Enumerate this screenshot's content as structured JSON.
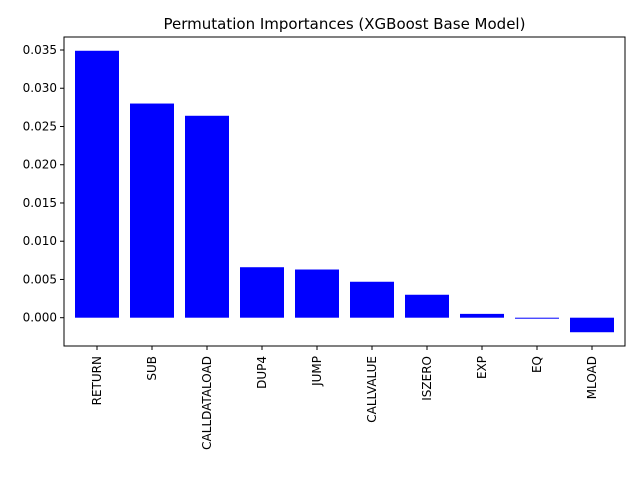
{
  "chart_data": {
    "type": "bar",
    "title": "Permutation Importances (XGBoost Base Model)",
    "xlabel": "",
    "ylabel": "",
    "categories": [
      "RETURN",
      "SUB",
      "CALLDATALOAD",
      "DUP4",
      "JUMP",
      "CALLVALUE",
      "ISZERO",
      "EXP",
      "EQ",
      "MLOAD"
    ],
    "values": [
      0.0349,
      0.028,
      0.0264,
      0.0066,
      0.0063,
      0.0047,
      0.003,
      0.0005,
      -0.0001,
      -0.0019
    ],
    "ylim": [
      -0.0037,
      0.0367
    ],
    "yticks": [
      0.0,
      0.005,
      0.01,
      0.015,
      0.02,
      0.025,
      0.03,
      0.035
    ],
    "ytick_labels": [
      "0.000",
      "0.005",
      "0.010",
      "0.015",
      "0.020",
      "0.025",
      "0.030",
      "0.035"
    ],
    "bar_color": "#0000ff",
    "grid": false,
    "legend": "none"
  }
}
